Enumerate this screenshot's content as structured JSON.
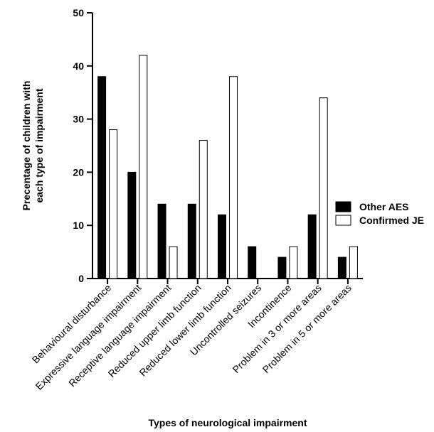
{
  "chart_data": {
    "type": "bar",
    "categories": [
      "Behavioural disturbance",
      "Expressive language impairment",
      "Receptive language impairment",
      "Reduced upper limb function",
      "Reduced lower limb function",
      "Uncontrolled seizures",
      "Incontinence",
      "Problem in 3 or more areas",
      "Problem in 5 or more  areas"
    ],
    "series": [
      {
        "name": "Other AES",
        "color": "#000000",
        "values": [
          38,
          20,
          14,
          14,
          12,
          6,
          4,
          12,
          4
        ]
      },
      {
        "name": "Confirmed JE",
        "color": "#ffffff",
        "values": [
          28,
          42,
          6,
          26,
          38,
          0,
          6,
          34,
          6
        ]
      }
    ],
    "title": "",
    "xlabel": "Types of neurological impairment",
    "ylabel_line1": "Precentage of children with",
    "ylabel_line2": "each type of  impairment",
    "ylim": [
      0,
      50
    ],
    "yticks": [
      "0",
      "10",
      "20",
      "30",
      "40",
      "50"
    ],
    "grid": false,
    "legend_position": "right"
  }
}
